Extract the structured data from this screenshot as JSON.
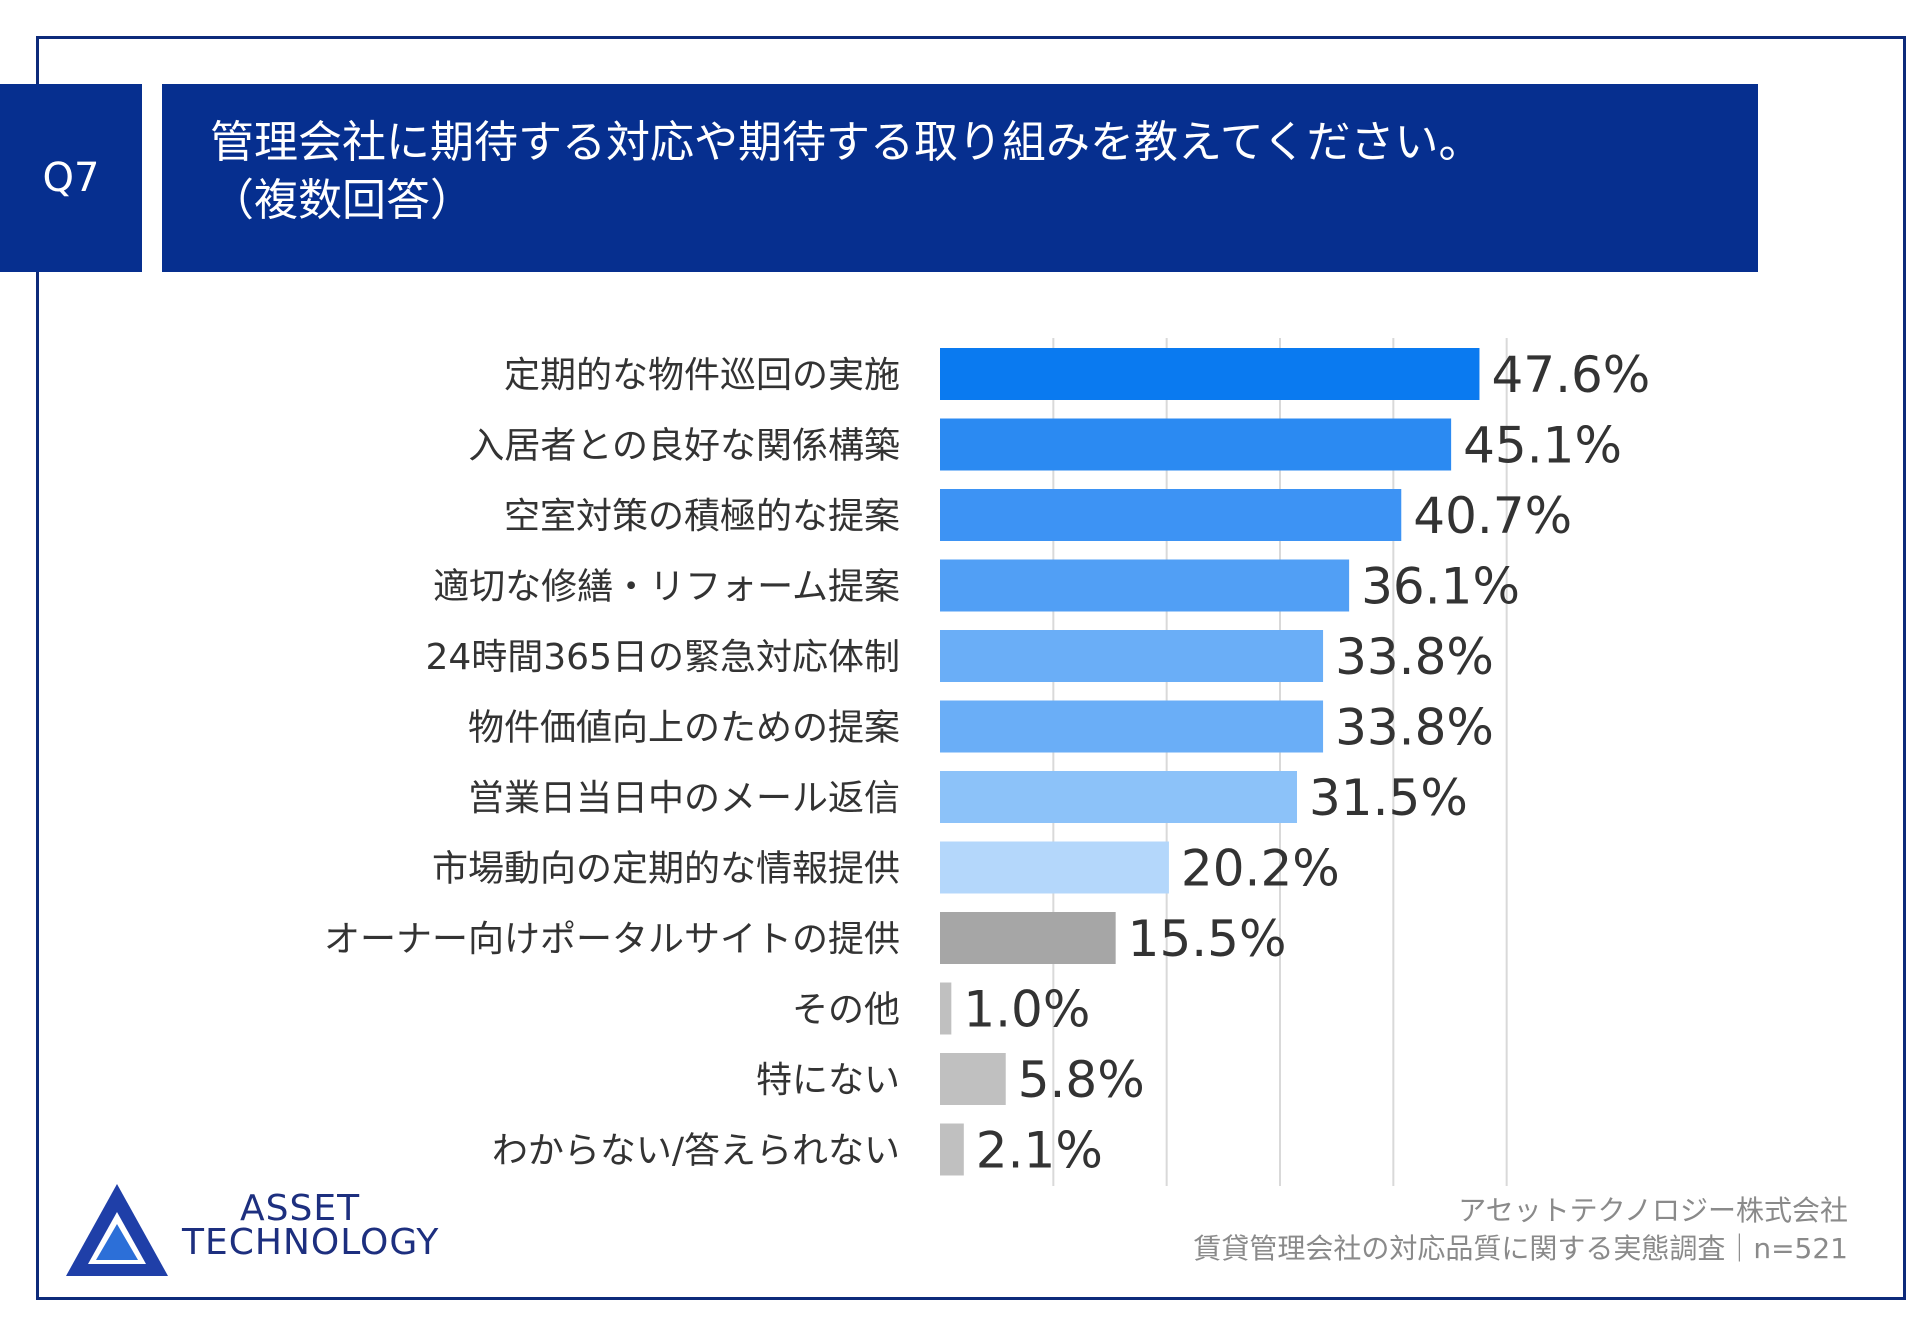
{
  "header": {
    "question_no": "Q7",
    "title_line1": "管理会社に期待する対応や期待する取り組みを教えてください。",
    "title_line2": "（複数回答）"
  },
  "chart_data": {
    "type": "bar",
    "orientation": "horizontal",
    "categories": [
      "定期的な物件巡回の実施",
      "入居者との良好な関係構築",
      "空室対策の積極的な提案",
      "適切な修繕・リフォーム提案",
      "24時間365日の緊急対応体制",
      "物件価値向上のための提案",
      "営業日当日中のメール返信",
      "市場動向の定期的な情報提供",
      "オーナー向けポータルサイトの提供",
      "その他",
      "特にない",
      "わからない/答えられない"
    ],
    "values": [
      47.6,
      45.1,
      40.7,
      36.1,
      33.8,
      33.8,
      31.5,
      20.2,
      15.5,
      1.0,
      5.8,
      2.1
    ],
    "value_labels": [
      "47.6%",
      "45.1%",
      "40.7%",
      "36.1%",
      "33.8%",
      "33.8%",
      "31.5%",
      "20.2%",
      "15.5%",
      "1.0%",
      "5.8%",
      "2.1%"
    ],
    "bar_colors": [
      "#0a7af0",
      "#2b8af2",
      "#3d93f4",
      "#519ff5",
      "#6aaef7",
      "#6aaef7",
      "#8cc2f9",
      "#b4d7fb",
      "#a6a6a6",
      "#c0c0c0",
      "#c0c0c0",
      "#c0c0c0"
    ],
    "xlim": [
      0,
      60
    ],
    "grid": true,
    "gridline_values": [
      10,
      20,
      30,
      40,
      50
    ]
  },
  "logo": {
    "line1": "ASSET",
    "line2": "TECHNOLOGY"
  },
  "source": {
    "line1": "アセットテクノロジー株式会社",
    "line2": "賃貸管理会社の対応品質に関する実態調査｜n=521"
  }
}
